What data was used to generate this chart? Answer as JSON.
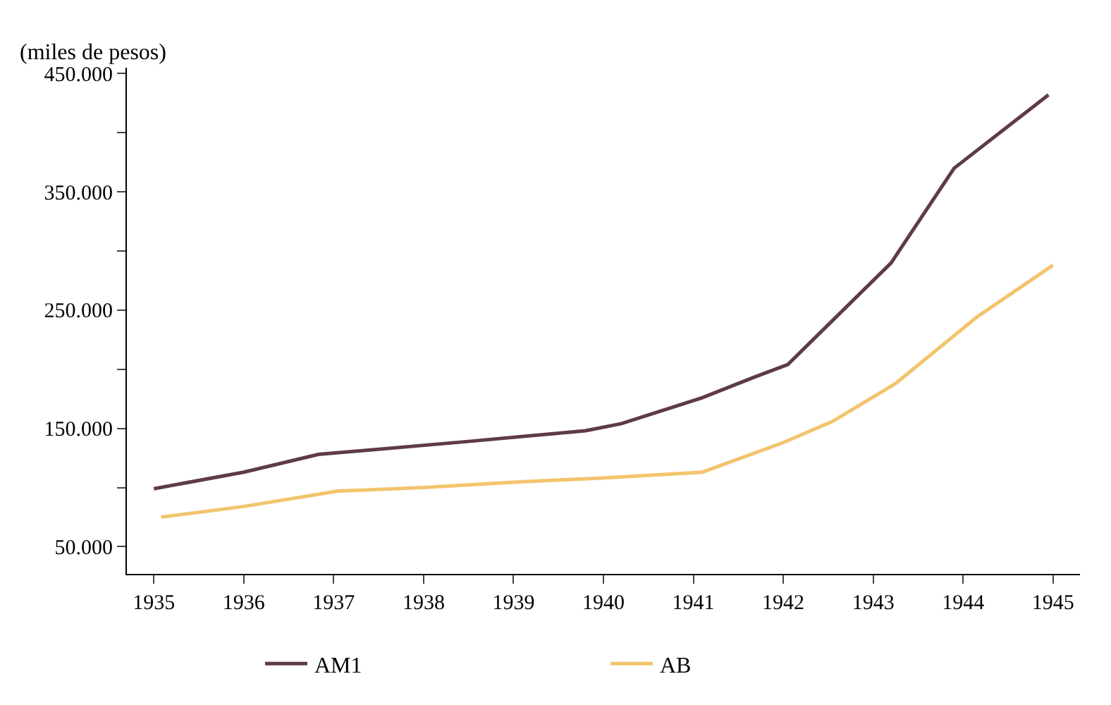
{
  "chart_data": {
    "type": "line",
    "ylabel": "(miles de pesos)",
    "xlim": [
      1934.7,
      1945.3
    ],
    "xticks": [
      1935,
      1936,
      1937,
      1938,
      1939,
      1940,
      1941,
      1942,
      1943,
      1944,
      1945
    ],
    "ylim": [
      27000,
      455000
    ],
    "yticks": [
      {
        "value": 50000,
        "label": "50.000"
      },
      {
        "value": 100000,
        "label": null
      },
      {
        "value": 150000,
        "label": "150.000"
      },
      {
        "value": 200000,
        "label": null
      },
      {
        "value": 250000,
        "label": "250.000"
      },
      {
        "value": 300000,
        "label": null
      },
      {
        "value": 350000,
        "label": "350.000"
      },
      {
        "value": 400000,
        "label": null
      },
      {
        "value": 450000,
        "label": "450.000"
      }
    ],
    "legend": "bottom",
    "line_style": "solid",
    "marker": "none",
    "series": [
      {
        "name": "AM1",
        "color": "#5e3a4a",
        "x": [
          1935,
          1936,
          1936.83,
          1938.5,
          1939.8,
          1940.2,
          1941.1,
          1941.7,
          1942.05,
          1943.2,
          1943.9,
          1944.95
        ],
        "values": [
          99000,
          113000,
          128000,
          139000,
          148000,
          154000,
          176000,
          194000,
          204000,
          290000,
          370000,
          432000
        ]
      },
      {
        "name": "AB",
        "color": "#f2c46d",
        "x": [
          1935.08,
          1936,
          1937.05,
          1938,
          1939.1,
          1940,
          1941.1,
          1942,
          1942.55,
          1943.25,
          1944.15,
          1945
        ],
        "values": [
          75000,
          84000,
          97000,
          100000,
          105000,
          108000,
          113000,
          138000,
          156000,
          188000,
          244000,
          288000
        ]
      }
    ]
  }
}
